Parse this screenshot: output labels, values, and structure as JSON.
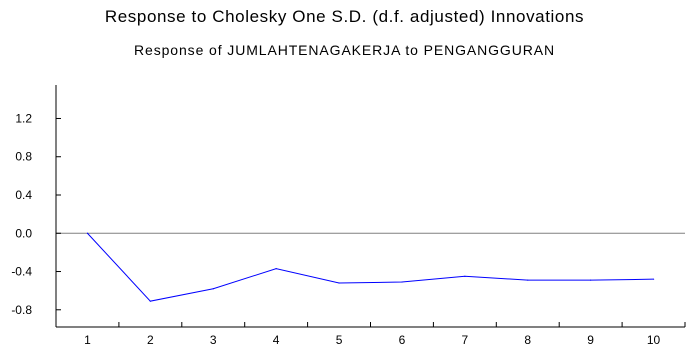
{
  "chart_data": {
    "type": "line",
    "title": "Response to Cholesky One S.D. (d.f. adjusted) Innovations",
    "subtitle": "Response of JUMLAHTENAGAKERJA to PENGANGGURAN",
    "xlabel": "",
    "ylabel": "",
    "categories": [
      "1",
      "2",
      "3",
      "4",
      "5",
      "6",
      "7",
      "8",
      "9",
      "10"
    ],
    "y_ticks": [
      "1.2",
      "0.8",
      "0.4",
      "0.0",
      "-0.4",
      "-0.8"
    ],
    "ylim": [
      -0.98,
      1.55
    ],
    "grid": false,
    "reference_line": 0.0,
    "series": [
      {
        "values": [
          0.0,
          -0.71,
          -0.58,
          -0.37,
          -0.52,
          -0.51,
          -0.45,
          -0.49,
          -0.49,
          -0.48
        ],
        "color": "#0000ff"
      }
    ],
    "axis_color": "#000000",
    "reference_line_color": "#808080"
  }
}
